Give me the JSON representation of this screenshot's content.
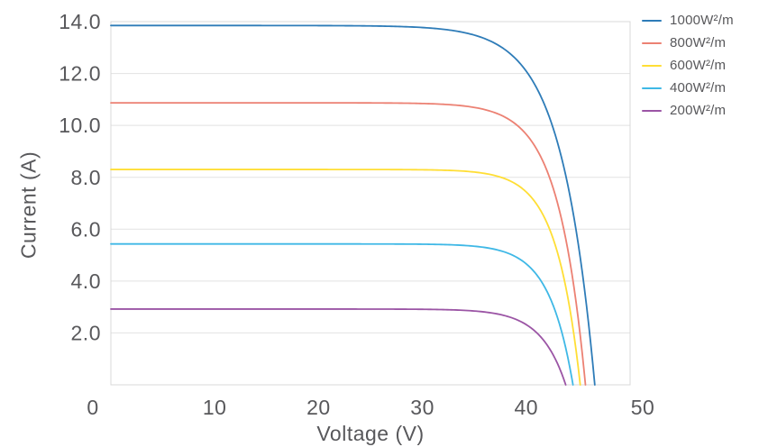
{
  "chart_data": {
    "type": "line",
    "title": "",
    "xlabel": "Voltage (V)",
    "ylabel": "Current (A)",
    "xlim": [
      0,
      50
    ],
    "ylim": [
      0,
      14
    ],
    "grid": "horizontal-only",
    "legend_position": "top-right-outside",
    "x_ticks": [
      {
        "v": 0,
        "label": "0"
      },
      {
        "v": 10,
        "label": "10"
      },
      {
        "v": 20,
        "label": "20"
      },
      {
        "v": 30,
        "label": "30"
      },
      {
        "v": 40,
        "label": "40"
      },
      {
        "v": 50,
        "label": "50"
      }
    ],
    "y_ticks": [
      {
        "v": 2,
        "label": "2.0"
      },
      {
        "v": 4,
        "label": "4.0"
      },
      {
        "v": 6,
        "label": "6.0"
      },
      {
        "v": 8,
        "label": "8.0"
      },
      {
        "v": 10,
        "label": "10.0"
      },
      {
        "v": 12,
        "label": "12.0"
      },
      {
        "v": 14,
        "label": "14.0"
      }
    ],
    "series": [
      {
        "name": "1000W²/m",
        "color": "#2e7cb8",
        "isc": 13.85,
        "voc": 46.6,
        "softness": 3.2,
        "points": [
          [
            0,
            13.85
          ],
          [
            10,
            13.85
          ],
          [
            20,
            13.84
          ],
          [
            30,
            13.77
          ],
          [
            35,
            13.48
          ],
          [
            38,
            12.91
          ],
          [
            40,
            12.09
          ],
          [
            42,
            10.56
          ],
          [
            44,
            7.7
          ],
          [
            45,
            5.45
          ],
          [
            46,
            2.37
          ],
          [
            46.6,
            0
          ]
        ]
      },
      {
        "name": "800W²/m",
        "color": "#ec8173",
        "isc": 10.87,
        "voc": 45.7,
        "softness": 2.6,
        "points": [
          [
            0,
            10.87
          ],
          [
            10,
            10.87
          ],
          [
            20,
            10.86
          ],
          [
            30,
            10.84
          ],
          [
            35,
            10.69
          ],
          [
            38,
            10.31
          ],
          [
            40,
            9.66
          ],
          [
            42,
            8.25
          ],
          [
            44,
            5.22
          ],
          [
            45,
            2.56
          ],
          [
            45.7,
            0
          ]
        ]
      },
      {
        "name": "600W²/m",
        "color": "#ffde35",
        "isc": 8.3,
        "voc": 45.2,
        "softness": 2.3,
        "points": [
          [
            0,
            8.3
          ],
          [
            10,
            8.3
          ],
          [
            20,
            8.3
          ],
          [
            30,
            8.29
          ],
          [
            35,
            8.2
          ],
          [
            38,
            7.94
          ],
          [
            40,
            7.44
          ],
          [
            42,
            6.23
          ],
          [
            44,
            3.37
          ],
          [
            45,
            0.69
          ],
          [
            45.2,
            0
          ]
        ]
      },
      {
        "name": "400W²/m",
        "color": "#3fb8e6",
        "isc": 5.43,
        "voc": 44.5,
        "softness": 2.3,
        "points": [
          [
            0,
            5.43
          ],
          [
            10,
            5.43
          ],
          [
            20,
            5.43
          ],
          [
            30,
            5.42
          ],
          [
            35,
            5.34
          ],
          [
            38,
            5.11
          ],
          [
            40,
            4.66
          ],
          [
            42,
            3.6
          ],
          [
            43,
            2.6
          ],
          [
            44,
            1.06
          ],
          [
            44.5,
            0
          ]
        ]
      },
      {
        "name": "200W²/m",
        "color": "#9b55a5",
        "isc": 2.92,
        "voc": 43.8,
        "softness": 2.4,
        "points": [
          [
            0,
            2.92
          ],
          [
            10,
            2.92
          ],
          [
            20,
            2.92
          ],
          [
            30,
            2.92
          ],
          [
            35,
            2.85
          ],
          [
            38,
            2.66
          ],
          [
            40,
            2.32
          ],
          [
            42,
            1.54
          ],
          [
            43,
            0.83
          ],
          [
            43.8,
            0
          ]
        ]
      }
    ],
    "colors": {
      "grid": "#e2e2e2",
      "border": "#d9d9d9",
      "text": "#58585b"
    }
  }
}
